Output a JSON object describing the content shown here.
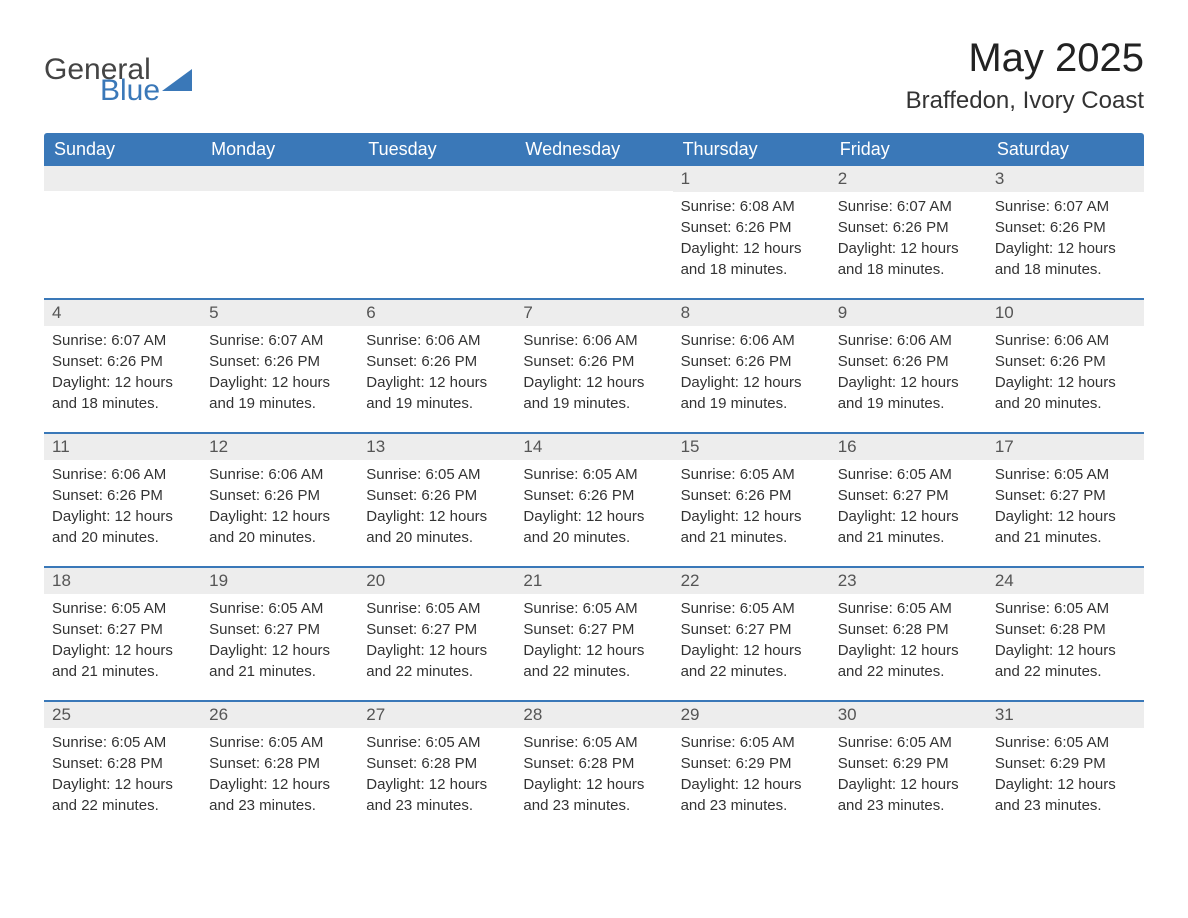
{
  "logo": {
    "text_general": "General",
    "text_blue": "Blue",
    "icon_color": "#3a78b8"
  },
  "title": "May 2025",
  "location": "Braffedon, Ivory Coast",
  "colors": {
    "header_bg": "#3a78b8",
    "header_text": "#ffffff",
    "daynum_bg": "#ededed",
    "week_divider": "#3a78b8",
    "body_text": "#333333",
    "background": "#ffffff"
  },
  "fonts": {
    "family": "Arial",
    "title_size_pt": 30,
    "location_size_pt": 18,
    "header_size_pt": 14,
    "daynum_size_pt": 13,
    "body_size_pt": 11
  },
  "day_names": [
    "Sunday",
    "Monday",
    "Tuesday",
    "Wednesday",
    "Thursday",
    "Friday",
    "Saturday"
  ],
  "weeks": [
    [
      null,
      null,
      null,
      null,
      {
        "day": "1",
        "sunrise": "Sunrise: 6:08 AM",
        "sunset": "Sunset: 6:26 PM",
        "daylight1": "Daylight: 12 hours",
        "daylight2": "and 18 minutes."
      },
      {
        "day": "2",
        "sunrise": "Sunrise: 6:07 AM",
        "sunset": "Sunset: 6:26 PM",
        "daylight1": "Daylight: 12 hours",
        "daylight2": "and 18 minutes."
      },
      {
        "day": "3",
        "sunrise": "Sunrise: 6:07 AM",
        "sunset": "Sunset: 6:26 PM",
        "daylight1": "Daylight: 12 hours",
        "daylight2": "and 18 minutes."
      }
    ],
    [
      {
        "day": "4",
        "sunrise": "Sunrise: 6:07 AM",
        "sunset": "Sunset: 6:26 PM",
        "daylight1": "Daylight: 12 hours",
        "daylight2": "and 18 minutes."
      },
      {
        "day": "5",
        "sunrise": "Sunrise: 6:07 AM",
        "sunset": "Sunset: 6:26 PM",
        "daylight1": "Daylight: 12 hours",
        "daylight2": "and 19 minutes."
      },
      {
        "day": "6",
        "sunrise": "Sunrise: 6:06 AM",
        "sunset": "Sunset: 6:26 PM",
        "daylight1": "Daylight: 12 hours",
        "daylight2": "and 19 minutes."
      },
      {
        "day": "7",
        "sunrise": "Sunrise: 6:06 AM",
        "sunset": "Sunset: 6:26 PM",
        "daylight1": "Daylight: 12 hours",
        "daylight2": "and 19 minutes."
      },
      {
        "day": "8",
        "sunrise": "Sunrise: 6:06 AM",
        "sunset": "Sunset: 6:26 PM",
        "daylight1": "Daylight: 12 hours",
        "daylight2": "and 19 minutes."
      },
      {
        "day": "9",
        "sunrise": "Sunrise: 6:06 AM",
        "sunset": "Sunset: 6:26 PM",
        "daylight1": "Daylight: 12 hours",
        "daylight2": "and 19 minutes."
      },
      {
        "day": "10",
        "sunrise": "Sunrise: 6:06 AM",
        "sunset": "Sunset: 6:26 PM",
        "daylight1": "Daylight: 12 hours",
        "daylight2": "and 20 minutes."
      }
    ],
    [
      {
        "day": "11",
        "sunrise": "Sunrise: 6:06 AM",
        "sunset": "Sunset: 6:26 PM",
        "daylight1": "Daylight: 12 hours",
        "daylight2": "and 20 minutes."
      },
      {
        "day": "12",
        "sunrise": "Sunrise: 6:06 AM",
        "sunset": "Sunset: 6:26 PM",
        "daylight1": "Daylight: 12 hours",
        "daylight2": "and 20 minutes."
      },
      {
        "day": "13",
        "sunrise": "Sunrise: 6:05 AM",
        "sunset": "Sunset: 6:26 PM",
        "daylight1": "Daylight: 12 hours",
        "daylight2": "and 20 minutes."
      },
      {
        "day": "14",
        "sunrise": "Sunrise: 6:05 AM",
        "sunset": "Sunset: 6:26 PM",
        "daylight1": "Daylight: 12 hours",
        "daylight2": "and 20 minutes."
      },
      {
        "day": "15",
        "sunrise": "Sunrise: 6:05 AM",
        "sunset": "Sunset: 6:26 PM",
        "daylight1": "Daylight: 12 hours",
        "daylight2": "and 21 minutes."
      },
      {
        "day": "16",
        "sunrise": "Sunrise: 6:05 AM",
        "sunset": "Sunset: 6:27 PM",
        "daylight1": "Daylight: 12 hours",
        "daylight2": "and 21 minutes."
      },
      {
        "day": "17",
        "sunrise": "Sunrise: 6:05 AM",
        "sunset": "Sunset: 6:27 PM",
        "daylight1": "Daylight: 12 hours",
        "daylight2": "and 21 minutes."
      }
    ],
    [
      {
        "day": "18",
        "sunrise": "Sunrise: 6:05 AM",
        "sunset": "Sunset: 6:27 PM",
        "daylight1": "Daylight: 12 hours",
        "daylight2": "and 21 minutes."
      },
      {
        "day": "19",
        "sunrise": "Sunrise: 6:05 AM",
        "sunset": "Sunset: 6:27 PM",
        "daylight1": "Daylight: 12 hours",
        "daylight2": "and 21 minutes."
      },
      {
        "day": "20",
        "sunrise": "Sunrise: 6:05 AM",
        "sunset": "Sunset: 6:27 PM",
        "daylight1": "Daylight: 12 hours",
        "daylight2": "and 22 minutes."
      },
      {
        "day": "21",
        "sunrise": "Sunrise: 6:05 AM",
        "sunset": "Sunset: 6:27 PM",
        "daylight1": "Daylight: 12 hours",
        "daylight2": "and 22 minutes."
      },
      {
        "day": "22",
        "sunrise": "Sunrise: 6:05 AM",
        "sunset": "Sunset: 6:27 PM",
        "daylight1": "Daylight: 12 hours",
        "daylight2": "and 22 minutes."
      },
      {
        "day": "23",
        "sunrise": "Sunrise: 6:05 AM",
        "sunset": "Sunset: 6:28 PM",
        "daylight1": "Daylight: 12 hours",
        "daylight2": "and 22 minutes."
      },
      {
        "day": "24",
        "sunrise": "Sunrise: 6:05 AM",
        "sunset": "Sunset: 6:28 PM",
        "daylight1": "Daylight: 12 hours",
        "daylight2": "and 22 minutes."
      }
    ],
    [
      {
        "day": "25",
        "sunrise": "Sunrise: 6:05 AM",
        "sunset": "Sunset: 6:28 PM",
        "daylight1": "Daylight: 12 hours",
        "daylight2": "and 22 minutes."
      },
      {
        "day": "26",
        "sunrise": "Sunrise: 6:05 AM",
        "sunset": "Sunset: 6:28 PM",
        "daylight1": "Daylight: 12 hours",
        "daylight2": "and 23 minutes."
      },
      {
        "day": "27",
        "sunrise": "Sunrise: 6:05 AM",
        "sunset": "Sunset: 6:28 PM",
        "daylight1": "Daylight: 12 hours",
        "daylight2": "and 23 minutes."
      },
      {
        "day": "28",
        "sunrise": "Sunrise: 6:05 AM",
        "sunset": "Sunset: 6:28 PM",
        "daylight1": "Daylight: 12 hours",
        "daylight2": "and 23 minutes."
      },
      {
        "day": "29",
        "sunrise": "Sunrise: 6:05 AM",
        "sunset": "Sunset: 6:29 PM",
        "daylight1": "Daylight: 12 hours",
        "daylight2": "and 23 minutes."
      },
      {
        "day": "30",
        "sunrise": "Sunrise: 6:05 AM",
        "sunset": "Sunset: 6:29 PM",
        "daylight1": "Daylight: 12 hours",
        "daylight2": "and 23 minutes."
      },
      {
        "day": "31",
        "sunrise": "Sunrise: 6:05 AM",
        "sunset": "Sunset: 6:29 PM",
        "daylight1": "Daylight: 12 hours",
        "daylight2": "and 23 minutes."
      }
    ]
  ]
}
